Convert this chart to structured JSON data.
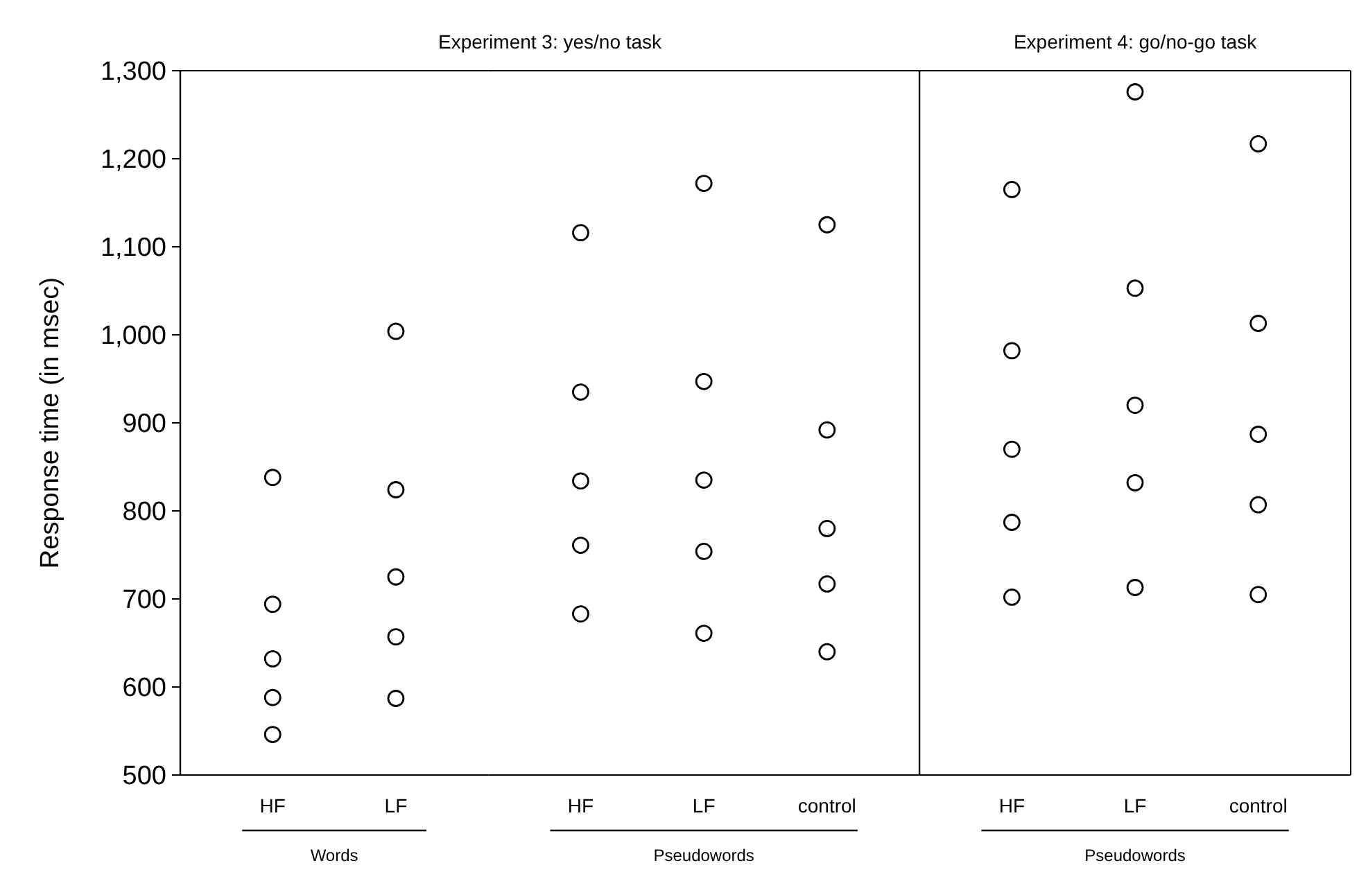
{
  "chart_data": [
    {
      "type": "scatter",
      "title": "Experiment 3: yes/no task",
      "xlabel": "Words",
      "ylabel": "Response time (in msec)",
      "categories": [
        "HF",
        "LF"
      ],
      "ylim": [
        500,
        1300
      ],
      "yticks": [
        {
          "value": 500,
          "label": "500"
        },
        {
          "value": 600,
          "label": "600"
        },
        {
          "value": 700,
          "label": "700"
        },
        {
          "value": 800,
          "label": "800"
        },
        {
          "value": 900,
          "label": "900"
        },
        {
          "value": 1000,
          "label": "1,000"
        },
        {
          "value": 1100,
          "label": "1,100"
        },
        {
          "value": 1200,
          "label": "1,200"
        },
        {
          "value": 1300,
          "label": "1,300"
        }
      ],
      "marker": "circle",
      "series": [
        {
          "color": "#000000",
          "values": [
            838,
            1004
          ]
        },
        {
          "color": "#000000",
          "values": [
            694,
            824
          ]
        },
        {
          "color": "#000000",
          "values": [
            632,
            725
          ]
        },
        {
          "color": "#000000",
          "values": [
            588,
            657
          ]
        },
        {
          "color": "#000000",
          "values": [
            546,
            587
          ]
        }
      ]
    },
    {
      "type": "scatter",
      "xlabel": "Pseudowords",
      "categories": [
        "HF",
        "LF",
        "control"
      ],
      "ylim": [
        500,
        1300
      ],
      "tick_labels": "x",
      "marker": "circle",
      "series": [
        {
          "color": "#000000",
          "values": [
            1116,
            1172,
            1125
          ]
        },
        {
          "color": "#000000",
          "values": [
            935,
            947,
            892
          ]
        },
        {
          "color": "#000000",
          "values": [
            834,
            835,
            780
          ]
        },
        {
          "color": "#000000",
          "values": [
            761,
            754,
            717
          ]
        },
        {
          "color": "#000000",
          "values": [
            683,
            661,
            640
          ]
        }
      ]
    },
    {
      "type": "scatter",
      "title": "Experiment 4: go/no-go task",
      "xlabel": "Pseudowords",
      "categories": [
        "HF",
        "LF",
        "control"
      ],
      "ylim": [
        500,
        1300
      ],
      "tick_labels": "x",
      "marker": "circle",
      "series": [
        {
          "color": "#000000",
          "values": [
            1165,
            1276,
            1217
          ]
        },
        {
          "color": "#000000",
          "values": [
            982,
            1053,
            1013
          ]
        },
        {
          "color": "#000000",
          "values": [
            870,
            920,
            887
          ]
        },
        {
          "color": "#000000",
          "values": [
            787,
            832,
            807
          ]
        },
        {
          "color": "#000000",
          "values": [
            702,
            713,
            705
          ]
        }
      ]
    }
  ]
}
